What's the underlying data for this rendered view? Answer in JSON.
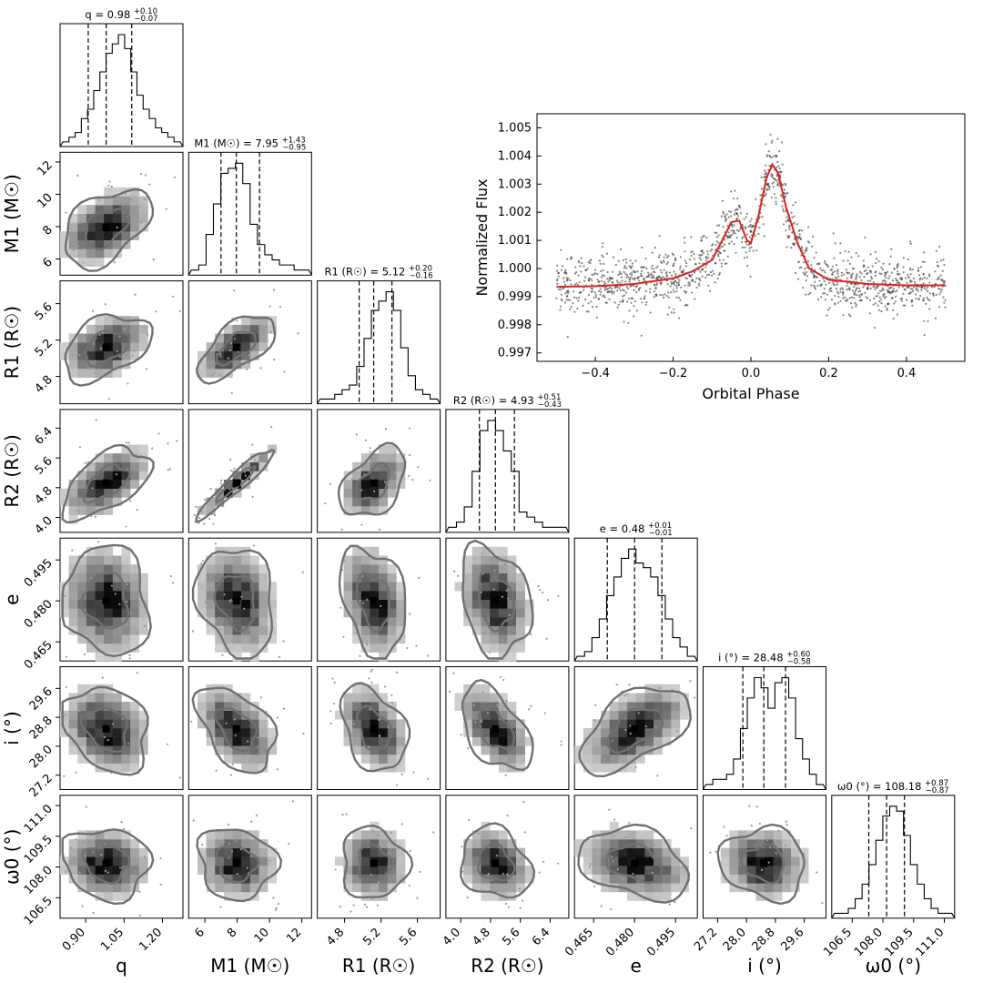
{
  "chart_data": [
    {
      "type": "corner",
      "parameters": [
        {
          "key": "q",
          "axis_label": "q",
          "range": [
            0.8,
            1.28
          ],
          "ticks": [
            "0.90",
            "1.05",
            "1.20"
          ],
          "title": "q = 0.98",
          "sup": "+0.10",
          "sub": "−0.07",
          "median": 0.98,
          "q16": 0.91,
          "q84": 1.08,
          "hist": [
            1,
            2,
            3,
            6,
            8,
            12,
            16,
            20,
            22,
            24,
            21,
            16,
            11,
            8,
            6,
            4,
            3,
            2,
            1
          ]
        },
        {
          "key": "M1",
          "axis_label": "M1 (M☉)",
          "range": [
            5.0,
            12.6
          ],
          "ticks": [
            "6",
            "8",
            "10",
            "12"
          ],
          "title": "M1 (M☉) = 7.95",
          "sup": "+1.43",
          "sub": "−0.95",
          "median": 7.95,
          "q16": 7.0,
          "q84": 9.38,
          "hist": [
            1,
            2,
            8,
            14,
            20,
            21,
            22,
            18,
            10,
            6,
            4,
            3,
            2,
            2,
            1,
            1
          ]
        },
        {
          "key": "R1",
          "axis_label": "R1 (R☉)",
          "range": [
            4.5,
            5.85
          ],
          "ticks": [
            "4.8",
            "5.2",
            "5.6"
          ],
          "title": "R1 (R☉) = 5.12",
          "sup": "+0.20",
          "sub": "−0.16",
          "median": 5.12,
          "q16": 4.96,
          "q84": 5.32,
          "hist": [
            1,
            1,
            2,
            3,
            4,
            8,
            14,
            20,
            22,
            24,
            20,
            12,
            6,
            3,
            2,
            1
          ]
        },
        {
          "key": "R2",
          "axis_label": "R2 (R☉)",
          "range": [
            3.6,
            6.9
          ],
          "ticks": [
            "4.0",
            "4.8",
            "5.6",
            "6.4"
          ],
          "title": "R2 (R☉) = 4.93",
          "sup": "+0.51",
          "sub": "−0.43",
          "median": 4.93,
          "q16": 4.5,
          "q84": 5.44,
          "hist": [
            1,
            2,
            5,
            12,
            20,
            22,
            20,
            16,
            12,
            4,
            3,
            2,
            1,
            1,
            1
          ]
        },
        {
          "key": "e",
          "axis_label": "e",
          "range": [
            0.458,
            0.503
          ],
          "ticks": [
            "0.465",
            "0.480",
            "0.495"
          ],
          "title": "e = 0.48",
          "sup": "+0.01",
          "sub": "−0.01",
          "median": 0.48,
          "q16": 0.47,
          "q84": 0.49,
          "hist": [
            1,
            2,
            5,
            9,
            14,
            18,
            22,
            24,
            21,
            20,
            18,
            14,
            9,
            5,
            3,
            1
          ]
        },
        {
          "key": "i",
          "axis_label": "i (°)",
          "range": [
            26.8,
            30.2
          ],
          "ticks": [
            "27.2",
            "28.0",
            "28.8",
            "29.6"
          ],
          "title": "i (°) = 28.48",
          "sup": "+0.60",
          "sub": "−0.58",
          "median": 28.48,
          "q16": 27.9,
          "q84": 29.08,
          "hist": [
            1,
            2,
            2,
            3,
            6,
            12,
            18,
            22,
            20,
            16,
            21,
            22,
            18,
            10,
            6,
            3,
            1
          ]
        },
        {
          "key": "w0",
          "axis_label": "ω0 (°)",
          "range": [
            105.5,
            111.5
          ],
          "ticks": [
            "106.5",
            "108.0",
            "109.5",
            "111.0"
          ],
          "title": "ω0 (°) = 108.18",
          "sup": "+0.87",
          "sub": "−0.87",
          "median": 108.18,
          "q16": 107.31,
          "q84": 109.05,
          "hist": [
            1,
            1,
            2,
            4,
            7,
            11,
            16,
            21,
            23,
            22,
            17,
            11,
            7,
            4,
            2,
            1,
            1
          ]
        }
      ],
      "correlation": [
        [
          0,
          0,
          0,
          0,
          0,
          0,
          0
        ],
        [
          0.45,
          0,
          0,
          0,
          0,
          0,
          0
        ],
        [
          0.4,
          0.65,
          0,
          0,
          0,
          0,
          0
        ],
        [
          0.55,
          0.95,
          0.45,
          0,
          0,
          0,
          0
        ],
        [
          -0.1,
          -0.2,
          -0.3,
          -0.25,
          0,
          0,
          0
        ],
        [
          -0.25,
          -0.45,
          -0.35,
          -0.5,
          0.55,
          0,
          0
        ],
        [
          -0.1,
          -0.1,
          -0.05,
          -0.2,
          -0.3,
          -0.1,
          0
        ]
      ]
    },
    {
      "type": "scatter",
      "xlabel": "Orbital Phase",
      "ylabel": "Normalized Flux",
      "xlim": [
        -0.55,
        0.55
      ],
      "ylim": [
        0.9967,
        1.0055
      ],
      "xticks": [
        "−0.4",
        "−0.2",
        "0.0",
        "0.2",
        "0.4"
      ],
      "yticks": [
        "0.997",
        "0.998",
        "0.999",
        "1.000",
        "1.001",
        "1.002",
        "1.003",
        "1.004",
        "1.005"
      ],
      "model_color": "#dd2222",
      "model": {
        "x": [
          -0.5,
          -0.4,
          -0.3,
          -0.2,
          -0.15,
          -0.1,
          -0.07,
          -0.05,
          -0.03,
          -0.01,
          0.0,
          0.02,
          0.04,
          0.055,
          0.07,
          0.09,
          0.12,
          0.15,
          0.2,
          0.3,
          0.4,
          0.5
        ],
        "y": [
          0.99935,
          0.99937,
          0.99945,
          0.99965,
          0.9999,
          1.0003,
          1.0011,
          1.00165,
          1.0017,
          1.001,
          1.0009,
          1.0019,
          1.0032,
          1.0037,
          1.0034,
          1.0022,
          1.0009,
          1.0,
          0.9996,
          0.99945,
          0.9994,
          0.9994
        ]
      }
    }
  ]
}
